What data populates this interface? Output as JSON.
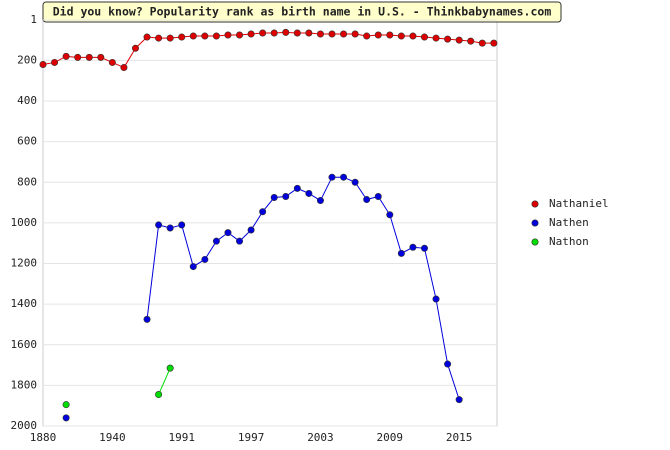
{
  "chart_data": {
    "type": "line",
    "title": "Did you know? Popularity rank as birth name in U.S. - Thinkbabynames.com",
    "categories": [
      "1880",
      null,
      null,
      null,
      null,
      null,
      "1940",
      null,
      null,
      null,
      null,
      null,
      "1991",
      null,
      null,
      null,
      null,
      null,
      "1997",
      null,
      null,
      null,
      null,
      null,
      "2003",
      null,
      null,
      null,
      null,
      null,
      "2009",
      null,
      null,
      null,
      null,
      null,
      "2015",
      null,
      null,
      null
    ],
    "series": [
      {
        "name": "Nathaniel",
        "color": "#dd0000",
        "values": [
          220,
          210,
          180,
          185,
          185,
          185,
          210,
          235,
          140,
          85,
          90,
          90,
          85,
          80,
          80,
          80,
          75,
          75,
          70,
          65,
          65,
          62,
          65,
          65,
          70,
          70,
          70,
          70,
          80,
          75,
          75,
          80,
          80,
          85,
          90,
          95,
          100,
          105,
          115,
          115
        ]
      },
      {
        "name": "Nathen",
        "color": "#0000dd",
        "values": [
          null,
          null,
          1960,
          null,
          null,
          null,
          null,
          null,
          null,
          1475,
          1010,
          1025,
          1010,
          1215,
          1180,
          1090,
          1048,
          1090,
          1035,
          945,
          875,
          870,
          830,
          855,
          890,
          775,
          775,
          800,
          885,
          870,
          960,
          1150,
          1120,
          1125,
          1375,
          1695,
          1870,
          null,
          null,
          null
        ]
      },
      {
        "name": "Nathon",
        "color": "#00dd00",
        "values": [
          null,
          null,
          1895,
          null,
          null,
          null,
          null,
          null,
          null,
          null,
          1845,
          1715,
          null,
          null,
          null,
          null,
          null,
          null,
          null,
          null,
          null,
          null,
          null,
          null,
          null,
          null,
          null,
          null,
          null,
          null,
          null,
          null,
          null,
          null,
          null,
          null,
          null,
          null,
          null,
          null
        ]
      }
    ],
    "ylim": [
      1,
      2000
    ],
    "y_inverted": true,
    "yticks": [
      1,
      200,
      400,
      600,
      800,
      1000,
      1200,
      1400,
      1600,
      1800,
      2000
    ],
    "grid": true,
    "legend": "right"
  }
}
